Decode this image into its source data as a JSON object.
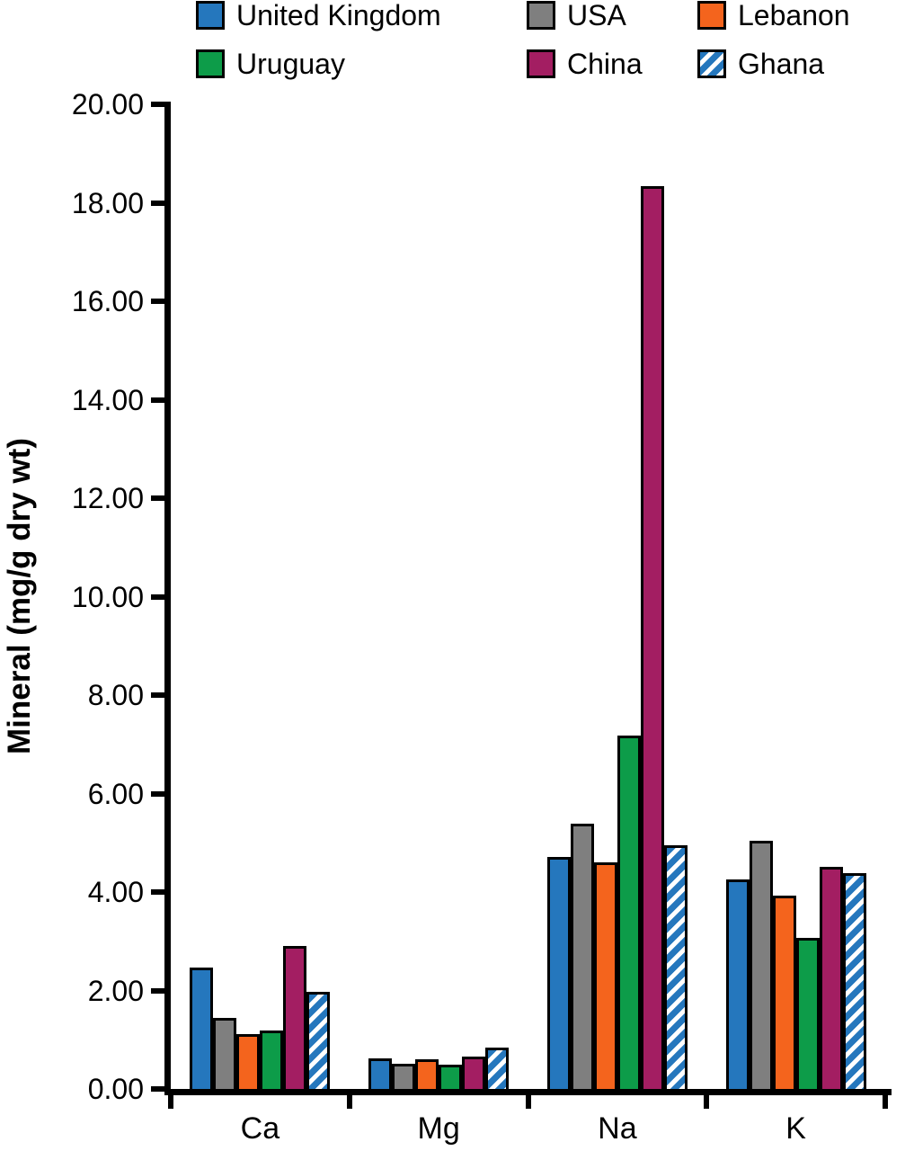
{
  "chart_data": {
    "type": "bar",
    "title": "",
    "xlabel": "",
    "ylabel": "Mineral (mg/g dry wt)",
    "ylim": [
      0,
      20
    ],
    "ytick_step": 2,
    "ytick_labels": [
      "0.00",
      "2.00",
      "4.00",
      "6.00",
      "8.00",
      "10.00",
      "12.00",
      "14.00",
      "16.00",
      "18.00",
      "20.00"
    ],
    "categories": [
      "Ca",
      "Mg",
      "Na",
      "K"
    ],
    "series": [
      {
        "name": "United Kingdom",
        "color": "#2577BD",
        "hatch": false,
        "values": [
          2.47,
          0.62,
          4.71,
          4.26
        ]
      },
      {
        "name": "USA",
        "color": "#7F7F7F",
        "hatch": false,
        "values": [
          1.44,
          0.51,
          5.39,
          5.04
        ]
      },
      {
        "name": "Lebanon",
        "color": "#F4641D",
        "hatch": false,
        "values": [
          1.11,
          0.6,
          4.6,
          3.93
        ]
      },
      {
        "name": "Uruguay",
        "color": "#0D9C49",
        "hatch": false,
        "values": [
          1.19,
          0.49,
          7.18,
          3.07
        ]
      },
      {
        "name": "China",
        "color": "#A31E62",
        "hatch": false,
        "values": [
          2.9,
          0.66,
          18.34,
          4.51
        ]
      },
      {
        "name": "Ghana",
        "color": "#2577BD",
        "hatch": true,
        "values": [
          1.97,
          0.84,
          4.95,
          4.38
        ]
      }
    ],
    "legend_position": "top",
    "grid": false,
    "hatch_stripe_color": "#ffffff"
  }
}
